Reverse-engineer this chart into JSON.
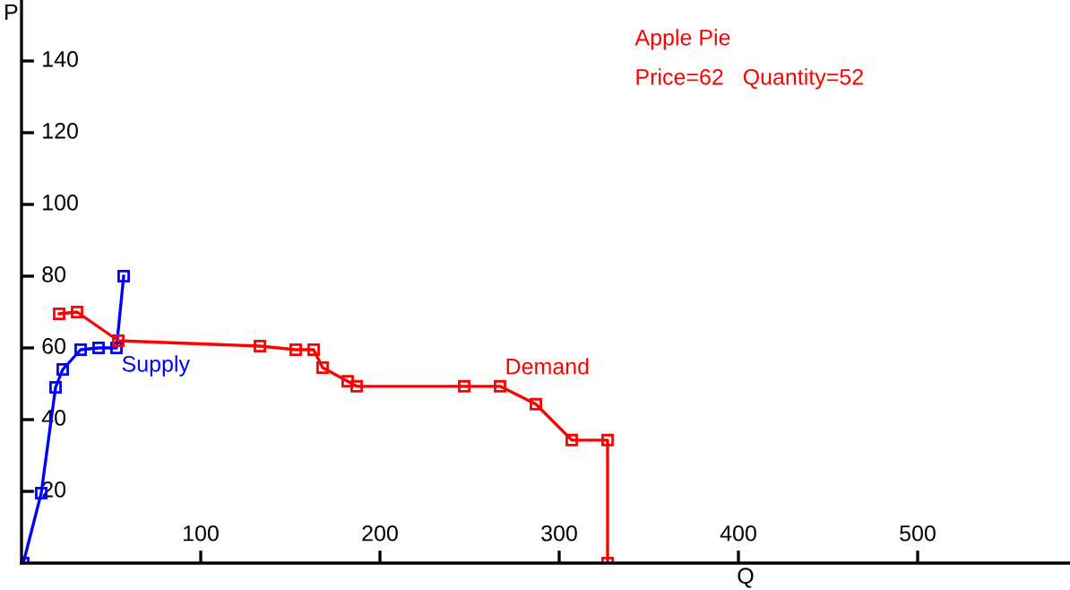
{
  "chart_data": {
    "type": "line",
    "xlabel": "Q",
    "ylabel": "P",
    "annotations": [
      "Apple Pie",
      "Price=62   Quantity=52"
    ],
    "xlim": [
      0,
      585
    ],
    "ylim": [
      0,
      157
    ],
    "xticks": [
      100,
      200,
      300,
      400,
      500
    ],
    "yticks": [
      20,
      40,
      60,
      80,
      100,
      120,
      140
    ],
    "grid": false,
    "legend": false,
    "marker": "square",
    "line_style": "solid",
    "series": [
      {
        "name": "Supply",
        "color": "#0000ff",
        "x": [
          1,
          11,
          19,
          23,
          33,
          43,
          53,
          57
        ],
        "values": [
          0,
          19.5,
          49,
          54,
          59.5,
          60,
          60,
          80
        ]
      },
      {
        "name": "Demand",
        "color": "#ff0000",
        "x": [
          21,
          31,
          54,
          133,
          153,
          163,
          168,
          182,
          187,
          247,
          267,
          287,
          307,
          327,
          327
        ],
        "values": [
          69.5,
          70,
          62,
          60.5,
          59.5,
          59.5,
          54.5,
          50.7,
          49.3,
          49.3,
          49.3,
          44.3,
          34.3,
          34.3,
          0
        ]
      }
    ]
  }
}
